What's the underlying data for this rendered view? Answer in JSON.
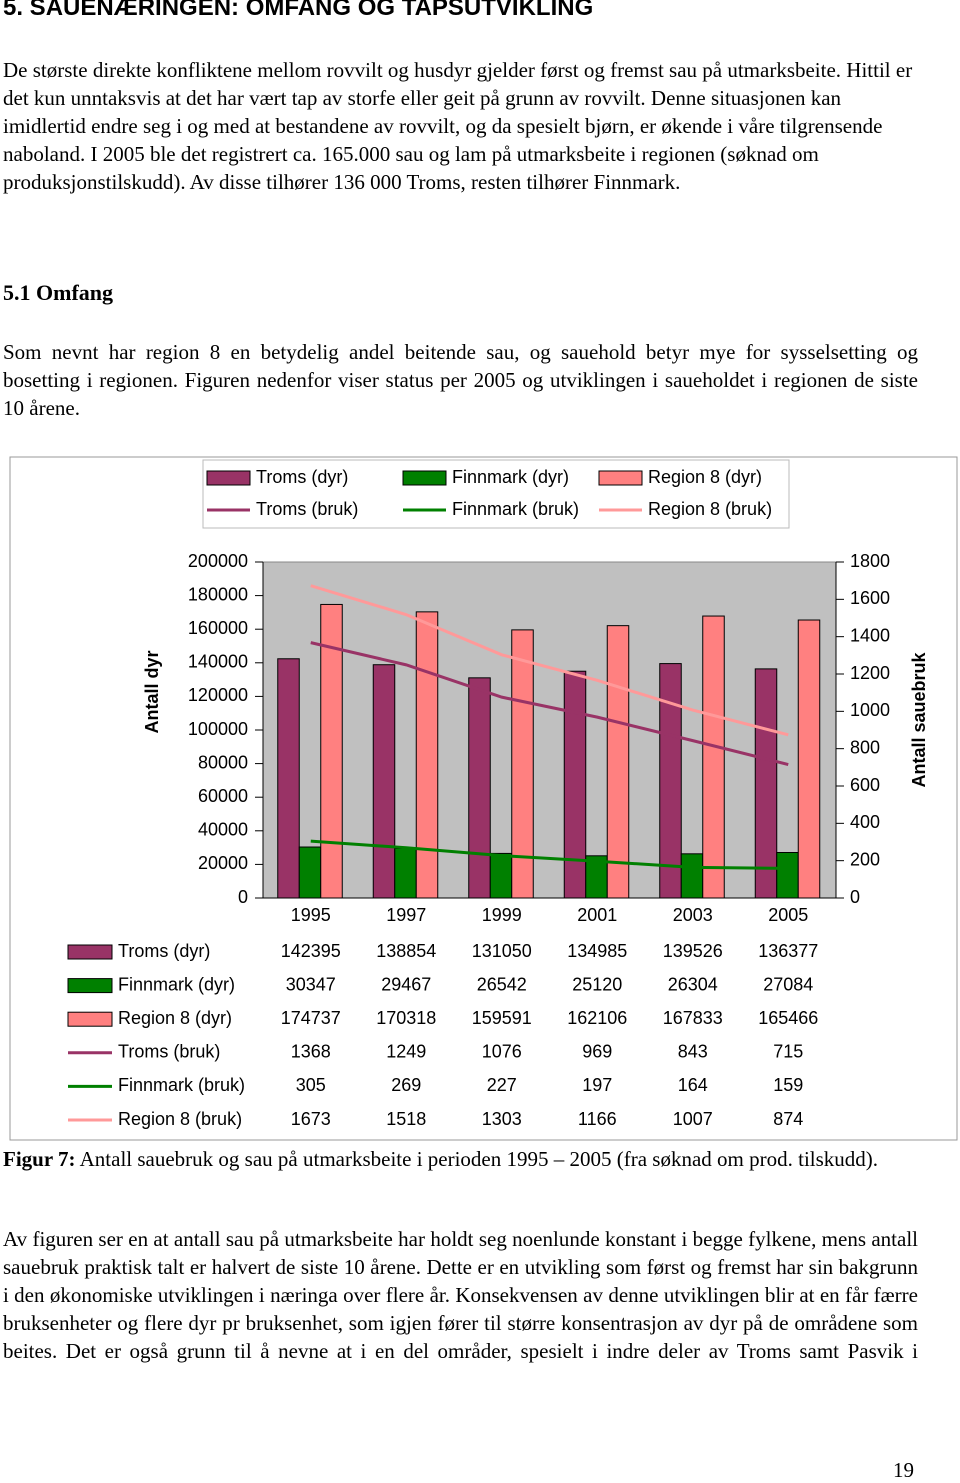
{
  "heading": "5. SAUENÆRINGEN: OMFANG OG TAPSUTVIKLING",
  "intro": "De største direkte konfliktene mellom rovvilt og husdyr gjelder først og fremst sau på utmarksbeite. Hittil er det kun unntaksvis at det har vært tap av storfe eller geit på grunn av rovvilt. Denne situasjonen kan imidlertid endre seg i og med at bestandene av rovvilt, og da spesielt bjørn, er økende i våre tilgrensende naboland. I 2005 ble det registrert ca. 165.000 sau og lam på utmarksbeite i regionen (søknad om produksjonstilskudd). Av disse tilhører 136 000 Troms, resten tilhører Finnmark.",
  "subheading": "5.1 Omfang",
  "section_text": "Som nevnt har region 8 en betydelig andel beitende sau, og sauehold betyr mye for sysselsetting og bosetting i regionen. Figuren nedenfor viser status per 2005 og utviklingen i saueholdet i regionen de siste 10 årene.",
  "chart_data": {
    "type": "combo",
    "categories": [
      "1995",
      "1997",
      "1999",
      "2001",
      "2003",
      "2005"
    ],
    "ylabel": "Antall dyr",
    "y2label": "Antall sauebruk",
    "ylim": [
      0,
      200000
    ],
    "yticks": [
      0,
      20000,
      40000,
      60000,
      80000,
      100000,
      120000,
      140000,
      160000,
      180000,
      200000
    ],
    "y2lim": [
      0,
      1800
    ],
    "y2ticks": [
      0,
      200,
      400,
      600,
      800,
      1000,
      1200,
      1400,
      1600,
      1800
    ],
    "series": [
      {
        "name": "Troms (dyr)",
        "type": "bar",
        "color": "#993366",
        "values": [
          142395,
          138854,
          131050,
          134985,
          139526,
          136377
        ]
      },
      {
        "name": "Finnmark (dyr)",
        "type": "bar",
        "color": "#008000",
        "values": [
          30347,
          29467,
          26542,
          25120,
          26304,
          27084
        ]
      },
      {
        "name": "Region 8 (dyr)",
        "type": "bar",
        "color": "#ff8080",
        "values": [
          174737,
          170318,
          159591,
          162106,
          167833,
          165466
        ]
      },
      {
        "name": "Troms (bruk)",
        "type": "line",
        "axis": "y2",
        "color": "#993366",
        "values": [
          1368,
          1249,
          1076,
          969,
          843,
          715
        ]
      },
      {
        "name": "Finnmark (bruk)",
        "type": "line",
        "axis": "y2",
        "color": "#008000",
        "values": [
          305,
          269,
          227,
          197,
          164,
          159
        ]
      },
      {
        "name": "Region 8 (bruk)",
        "type": "line",
        "axis": "y2",
        "color": "#ff9999",
        "values": [
          1673,
          1518,
          1303,
          1166,
          1007,
          874
        ]
      }
    ]
  },
  "caption": {
    "label": "Figur 7:",
    "text": "Antall sauebruk og sau på utmarksbeite i perioden 1995 – 2005 (fra søknad om prod. tilskudd)."
  },
  "discussion": "Av figuren ser en at antall sau på utmarksbeite har holdt seg noenlunde konstant i begge fylkene, mens antall sauebruk praktisk talt er halvert de siste 10 årene. Dette er en utvikling som først og fremst har sin bakgrunn i den økonomiske utviklingen i næringa over flere år. Konsekvensen av denne utviklingen blir at en får færre bruksenheter og flere dyr pr bruksenhet, som igjen fører til større konsentrasjon av dyr på de områdene som beites. Det er også grunn til å nevne at i en del områder, spesielt i indre deler av Troms samt Pasvik i",
  "page_number": "19"
}
